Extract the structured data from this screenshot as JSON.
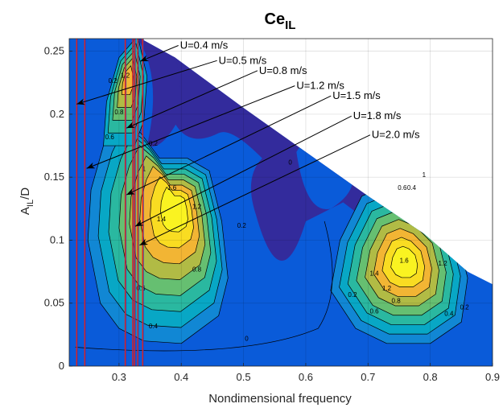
{
  "chart_data": {
    "type": "heatmap",
    "title": "Ce",
    "title_subscript": "IL",
    "xlabel": "Nondimensional frequency",
    "ylabel_main": "A",
    "ylabel_sub": "IL",
    "ylabel_suffix": "/D",
    "xlim": [
      0.22,
      0.9
    ],
    "ylim": [
      0,
      0.26
    ],
    "xticks": [
      0.3,
      0.4,
      0.5,
      0.6,
      0.7,
      0.8,
      0.9
    ],
    "xtick_labels": [
      "0.3",
      "0.4",
      "0.5",
      "0.6",
      "0.7",
      "0.8",
      "0.9"
    ],
    "yticks": [
      0,
      0.05,
      0.1,
      0.15,
      0.2,
      0.25
    ],
    "ytick_labels": [
      "0",
      "0.05",
      "0.1",
      "0.15",
      "0.2",
      "0.25"
    ],
    "grid": true,
    "colormap": "parula",
    "contour_levels": [
      0,
      0.2,
      0.4,
      0.6,
      0.8,
      1.0,
      1.2,
      1.4,
      1.6
    ],
    "contour_labels": [
      {
        "text": "0",
        "x": 0.505,
        "y": 0.02
      },
      {
        "text": "0",
        "x": 0.575,
        "y": 0.16
      },
      {
        "text": "0",
        "x": 0.25,
        "y": 0.27
      },
      {
        "text": "0.2",
        "x": 0.29,
        "y": 0.225
      },
      {
        "text": "0.2",
        "x": 0.355,
        "y": 0.175
      },
      {
        "text": "0.2",
        "x": 0.497,
        "y": 0.11
      },
      {
        "text": "0.2",
        "x": 0.855,
        "y": 0.045
      },
      {
        "text": "0.2",
        "x": 0.675,
        "y": 0.055
      },
      {
        "text": "0.4",
        "x": 0.355,
        "y": 0.03
      },
      {
        "text": "0.4",
        "x": 0.83,
        "y": 0.04
      },
      {
        "text": "0.4",
        "x": 0.77,
        "y": 0.14
      },
      {
        "text": "0.6",
        "x": 0.285,
        "y": 0.18
      },
      {
        "text": "0.6",
        "x": 0.335,
        "y": 0.06
      },
      {
        "text": "0.6",
        "x": 0.755,
        "y": 0.14
      },
      {
        "text": "0.6",
        "x": 0.71,
        "y": 0.042
      },
      {
        "text": "0.8",
        "x": 0.3,
        "y": 0.2
      },
      {
        "text": "0.8",
        "x": 0.425,
        "y": 0.075
      },
      {
        "text": "0.8",
        "x": 0.745,
        "y": 0.05
      },
      {
        "text": "1",
        "x": 0.34,
        "y": 0.155
      },
      {
        "text": "1",
        "x": 0.79,
        "y": 0.15
      },
      {
        "text": "1.2",
        "x": 0.31,
        "y": 0.229
      },
      {
        "text": "1.2",
        "x": 0.425,
        "y": 0.125
      },
      {
        "text": "1.2",
        "x": 0.82,
        "y": 0.08
      },
      {
        "text": "1.2",
        "x": 0.73,
        "y": 0.06
      },
      {
        "text": "1.4",
        "x": 0.368,
        "y": 0.115
      },
      {
        "text": "1.4",
        "x": 0.71,
        "y": 0.072
      },
      {
        "text": "1.6",
        "x": 0.385,
        "y": 0.14
      },
      {
        "text": "1.6",
        "x": 0.758,
        "y": 0.082
      }
    ],
    "series": [
      {
        "name": "U=0.4 m/s",
        "x": 0.232,
        "tip": [
          0.334,
          0.242
        ],
        "label_at": [
          0.398,
          0.252
        ]
      },
      {
        "name": "U=0.5 m/s",
        "x": 0.245,
        "tip": [
          0.232,
          0.208
        ],
        "label_at": [
          0.46,
          0.24
        ]
      },
      {
        "name": "U=0.8 m/s",
        "x": 0.31,
        "tip": [
          0.312,
          0.189
        ],
        "label_at": [
          0.525,
          0.232
        ]
      },
      {
        "name": "U=1.2 m/s",
        "x": 0.322,
        "tip": [
          0.248,
          0.157
        ],
        "label_at": [
          0.585,
          0.22
        ]
      },
      {
        "name": "U=1.5 m/s",
        "x": 0.325,
        "tip": [
          0.312,
          0.136
        ],
        "label_at": [
          0.643,
          0.212
        ]
      },
      {
        "name": "U=1.8 m/s",
        "x": 0.33,
        "tip": [
          0.326,
          0.111
        ],
        "label_at": [
          0.676,
          0.196
        ]
      },
      {
        "name": "U=2.0 m/s",
        "x": 0.338,
        "tip": [
          0.333,
          0.096
        ],
        "label_at": [
          0.706,
          0.181
        ]
      }
    ],
    "colors": {
      "v_low": "#332b9c",
      "v_02": "#0a5bd9",
      "v_04": "#1187d4",
      "v_06": "#08a7c5",
      "v_08": "#2ab8a0",
      "v_10": "#66bf71",
      "v_12": "#b1bb45",
      "v_14": "#f2b534",
      "v_16": "#f9dc22",
      "v_peak": "#faf321",
      "line_red": "#e0221f",
      "line_blue": "#1f3cc4",
      "contour": "#000000"
    }
  }
}
